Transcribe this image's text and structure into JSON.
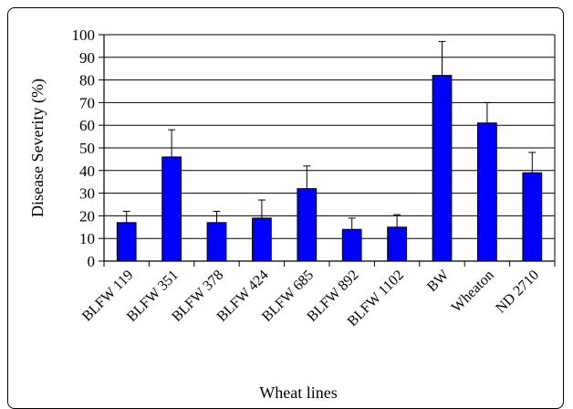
{
  "chart_data": {
    "type": "bar",
    "title": "",
    "xlabel": "Wheat lines",
    "ylabel": "Disease Severity (%)",
    "ylim": [
      0,
      100
    ],
    "yticks": [
      0,
      10,
      20,
      30,
      40,
      50,
      60,
      70,
      80,
      90,
      100
    ],
    "grid": true,
    "legend": "none",
    "bar_color": "#0000ff",
    "categories": [
      "BLFW 119",
      "BLFW 351",
      "BLFW 378",
      "BLFW 424",
      "BLFW 685",
      "BLFW 892",
      "BLFW 1102",
      "BW",
      "Wheaton",
      "ND 2710"
    ],
    "values": [
      17,
      46,
      17,
      19,
      32,
      14,
      15,
      82,
      61,
      39
    ],
    "error": [
      5,
      12,
      5,
      8,
      10,
      5,
      5.5,
      15,
      9,
      9
    ]
  }
}
